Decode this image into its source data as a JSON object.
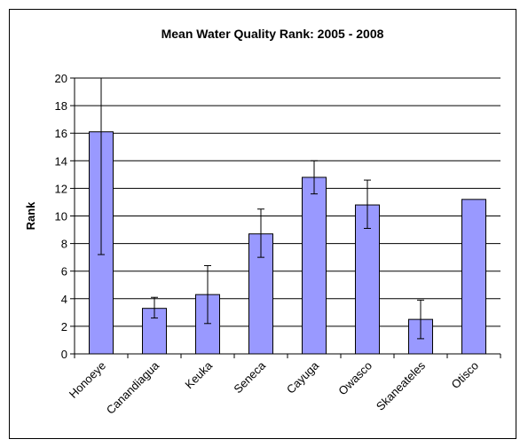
{
  "chart_data": {
    "type": "bar",
    "title": "Mean Water Quality Rank: 2005 - 2008",
    "xlabel": "",
    "ylabel": "Rank",
    "ylim": [
      0,
      20
    ],
    "yticks": [
      0,
      2,
      4,
      6,
      8,
      10,
      12,
      14,
      16,
      18,
      20
    ],
    "categories": [
      "Honoeye",
      "Canandiagua",
      "Keuka",
      "Seneca",
      "Cayuga",
      "Owasco",
      "Skaneateles",
      "Otisco"
    ],
    "series": [
      {
        "values": [
          16.1,
          3.3,
          4.3,
          8.7,
          12.8,
          10.8,
          2.5,
          11.2
        ],
        "error_low": [
          7.2,
          2.6,
          2.2,
          7.0,
          11.6,
          9.1,
          1.1,
          null
        ],
        "error_high": [
          20.0,
          4.1,
          6.4,
          10.5,
          14.0,
          12.6,
          3.9,
          null
        ]
      }
    ],
    "grid": true,
    "legend": "none",
    "colors": {
      "bar_fill": "#9999ff",
      "bar_stroke": "#000000",
      "grid": "#000000"
    }
  }
}
